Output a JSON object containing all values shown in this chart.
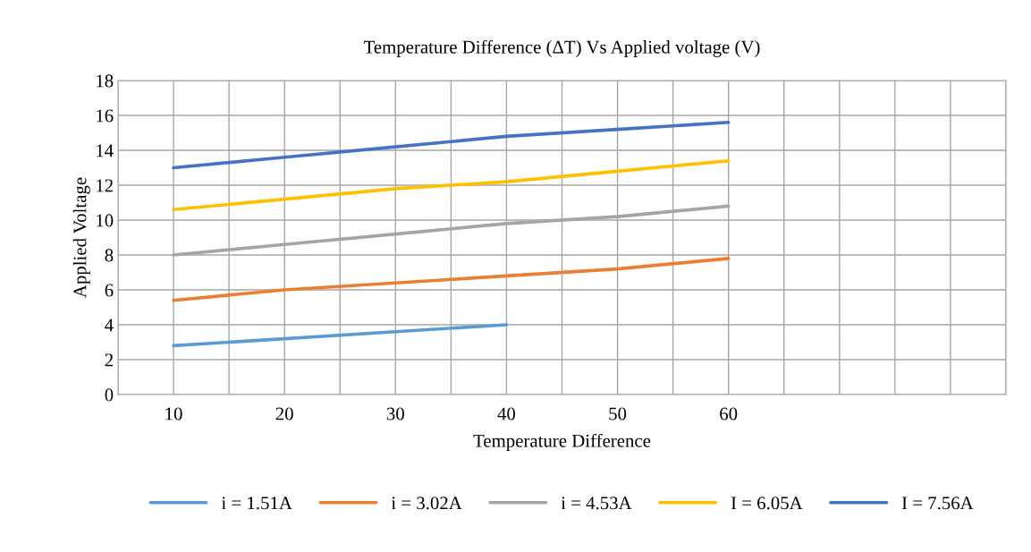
{
  "chart_data": {
    "type": "line",
    "title": "Temperature Difference (ΔT) Vs Applied voltage (V)",
    "xlabel": "Temperature Difference",
    "ylabel": "Applied Voltage",
    "xlim": [
      5,
      85
    ],
    "xticks": [
      {
        "value": 5,
        "label": null
      },
      10,
      {
        "value": 15,
        "label": null
      },
      20,
      {
        "value": 25,
        "label": null
      },
      30,
      {
        "value": 35,
        "label": null
      },
      40,
      {
        "value": 45,
        "label": null
      },
      50,
      {
        "value": 55,
        "label": null
      },
      60,
      {
        "value": 65,
        "label": null
      },
      {
        "value": 70,
        "label": null
      },
      {
        "value": 75,
        "label": null
      },
      {
        "value": 80,
        "label": null
      },
      {
        "value": 85,
        "label": null
      }
    ],
    "ylim": [
      0,
      18
    ],
    "yticks": [
      0,
      2,
      4,
      6,
      8,
      10,
      12,
      14,
      16,
      18
    ],
    "grid": true,
    "legend": "bottom",
    "marker": "none",
    "line_style": "solid",
    "series": [
      {
        "name": "i = 1.51A",
        "color": "#5b9bd5",
        "x": [
          10,
          20,
          30,
          40
        ],
        "values": [
          2.8,
          3.2,
          3.6,
          4.0
        ]
      },
      {
        "name": "i = 3.02A",
        "color": "#ed7d31",
        "x": [
          10,
          20,
          30,
          40,
          50,
          60
        ],
        "values": [
          5.4,
          6.0,
          6.4,
          6.8,
          7.2,
          7.8
        ]
      },
      {
        "name": "i = 4.53A",
        "color": "#a5a5a5",
        "x": [
          10,
          20,
          30,
          40,
          50,
          60
        ],
        "values": [
          8.0,
          8.6,
          9.2,
          9.8,
          10.2,
          10.8
        ]
      },
      {
        "name": "I = 6.05A",
        "color": "#ffc000",
        "x": [
          10,
          20,
          30,
          40,
          50,
          60
        ],
        "values": [
          10.6,
          11.2,
          11.8,
          12.2,
          12.8,
          13.4
        ]
      },
      {
        "name": "I = 7.56A",
        "color": "#4472c4",
        "x": [
          10,
          20,
          30,
          40,
          50,
          60
        ],
        "values": [
          13.0,
          13.6,
          14.2,
          14.8,
          15.2,
          15.6
        ]
      }
    ]
  }
}
